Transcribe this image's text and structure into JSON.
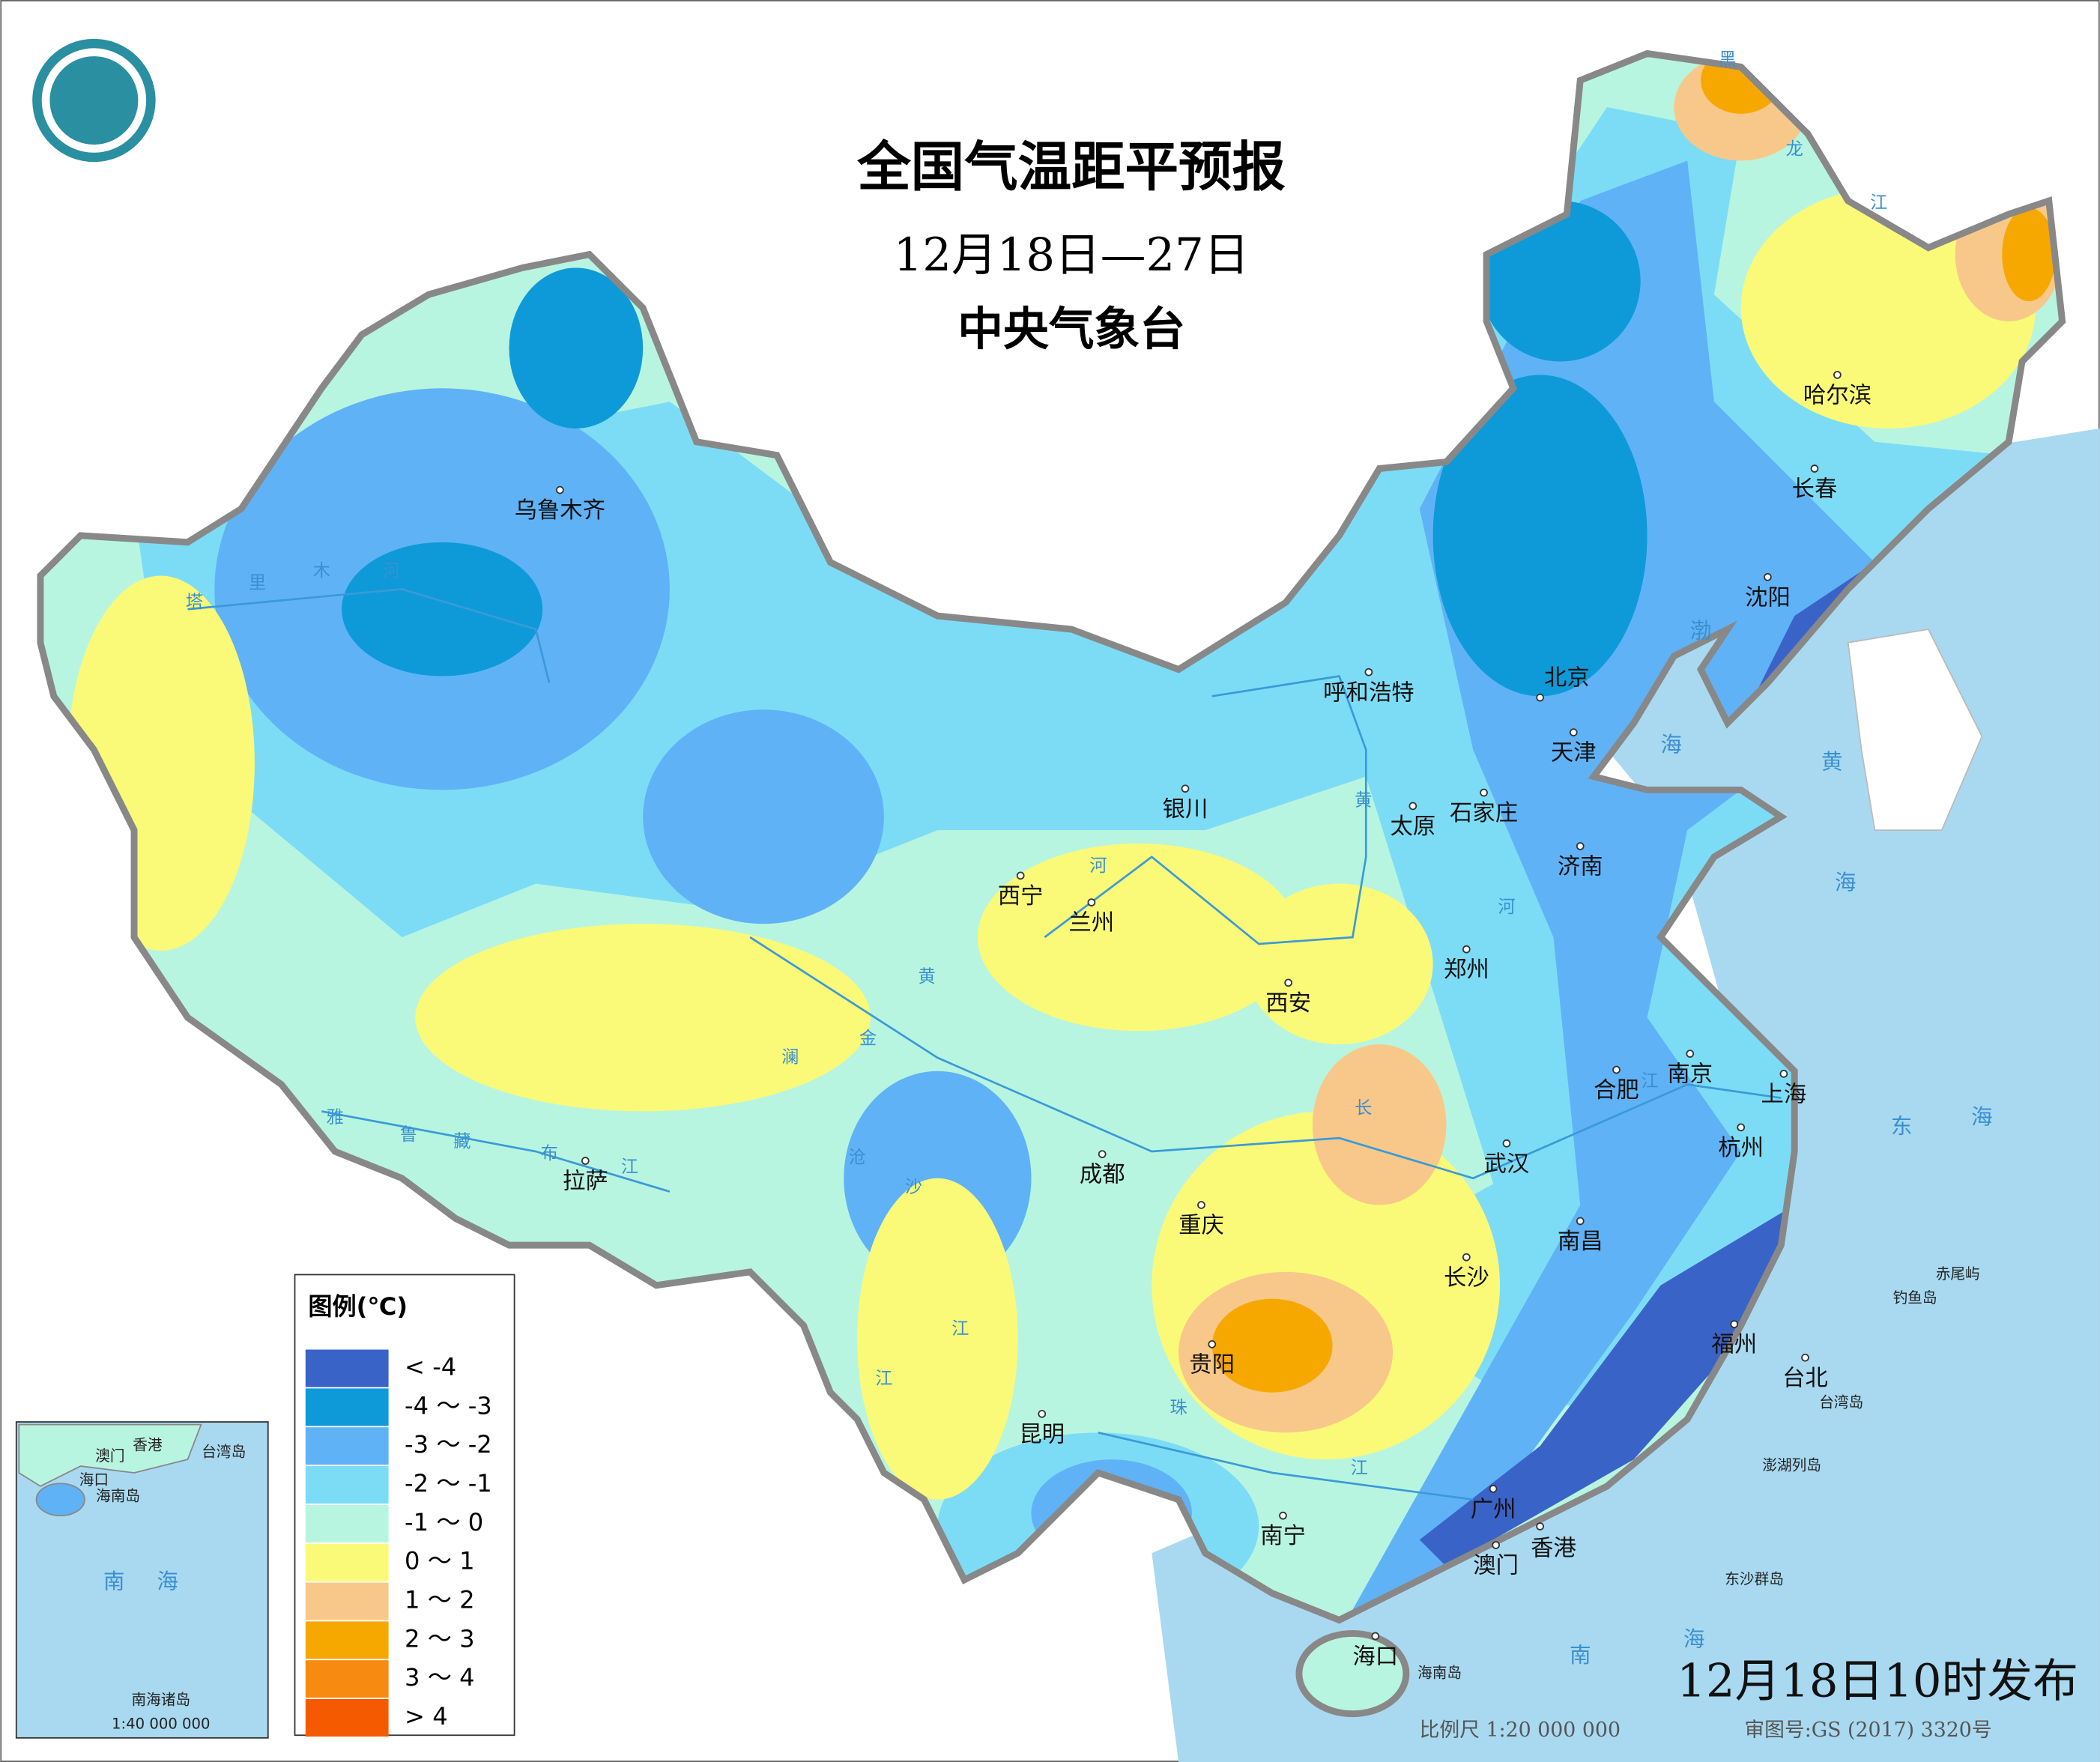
{
  "header": {
    "title": "全国气温距平预报",
    "date_range": "12月18日—27日",
    "agency": "中央气象台"
  },
  "legend": {
    "title": "图例(℃)",
    "items": [
      {
        "label": "< -4",
        "color": "#3a63c8"
      },
      {
        "label": "-4 ～ -3",
        "color": "#0e9ad8"
      },
      {
        "label": "-3 ～ -2",
        "color": "#60b2f6"
      },
      {
        "label": "-2 ～ -1",
        "color": "#7ddcf5"
      },
      {
        "label": "-1 ～ 0",
        "color": "#b8f5e0"
      },
      {
        "label": "0 ～ 1",
        "color": "#fafa78"
      },
      {
        "label": "1 ～ 2",
        "color": "#f8c88a"
      },
      {
        "label": "2 ～ 3",
        "color": "#f7a800"
      },
      {
        "label": "3 ～ 4",
        "color": "#f78a10"
      },
      {
        "label": "> 4",
        "color": "#f55a00"
      }
    ]
  },
  "cities": [
    "乌鲁木齐",
    "哈尔滨",
    "长春",
    "沈阳",
    "北京",
    "天津",
    "呼和浩特",
    "银川",
    "太原",
    "石家庄",
    "济南",
    "西宁",
    "兰州",
    "郑州",
    "西安",
    "合肥",
    "南京",
    "上海",
    "杭州",
    "武汉",
    "成都",
    "拉萨",
    "重庆",
    "长沙",
    "南昌",
    "福州",
    "台北",
    "贵阳",
    "昆明",
    "南宁",
    "广州",
    "香港",
    "澳门",
    "海口"
  ],
  "rivers": [
    "塔",
    "里",
    "木",
    "河",
    "黄",
    "河",
    "河",
    "黄",
    "金",
    "沙",
    "江",
    "澜",
    "沧",
    "江",
    "雅",
    "鲁",
    "藏",
    "布",
    "江",
    "长",
    "江",
    "珠",
    "江",
    "黑",
    "龙",
    "江"
  ],
  "seas": [
    "渤",
    "海",
    "黄",
    "海",
    "东",
    "海",
    "南",
    "海"
  ],
  "islands": [
    "赤尾屿",
    "钓鱼岛",
    "台湾岛",
    "澎湖列岛",
    "东沙群岛",
    "海南岛"
  ],
  "inset": {
    "labels": [
      "香港",
      "澳门",
      "台湾岛",
      "海口",
      "海南岛",
      "南",
      "海",
      "南海诸岛"
    ],
    "scale": "1:40 000 000"
  },
  "footer": {
    "issued": "12月18日10时发布",
    "scale": "比例尺 1:20 000 000",
    "approval": "审图号:GS (2017) 3320号"
  }
}
